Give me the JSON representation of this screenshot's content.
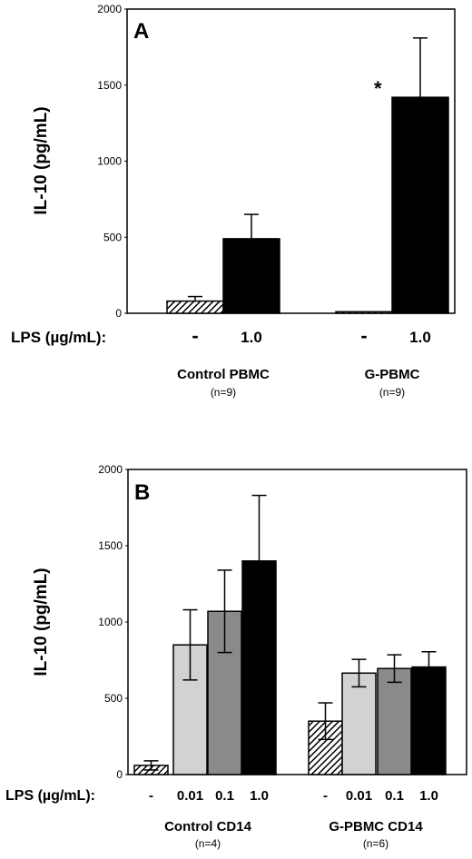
{
  "chart_data": [
    {
      "type": "bar",
      "panel": "A",
      "ylabel": "IL-10 (pg/mL)",
      "ylim": [
        0,
        2000
      ],
      "yticks": [
        "0",
        "500",
        "1000",
        "1500",
        "2000"
      ],
      "lps_label": "LPS (µg/mL):",
      "groups": [
        {
          "name": "Control PBMC",
          "n": "(n=9)",
          "bars": [
            {
              "condition": "-",
              "value": 80,
              "error": 30,
              "fill": "hatch"
            },
            {
              "condition": "1.0",
              "value": 490,
              "error": 160,
              "fill": "#000000"
            }
          ]
        },
        {
          "name": "G-PBMC",
          "n": "(n=9)",
          "bars": [
            {
              "condition": "-",
              "value": 10,
              "error": 0,
              "fill": "hatch"
            },
            {
              "condition": "1.0",
              "value": 1420,
              "error": 390,
              "fill": "#000000",
              "annotation": "*"
            }
          ]
        }
      ]
    },
    {
      "type": "bar",
      "panel": "B",
      "ylabel": "IL-10 (pg/mL)",
      "ylim": [
        0,
        2000
      ],
      "yticks": [
        "0",
        "500",
        "1000",
        "1500",
        "2000"
      ],
      "lps_label": "LPS (µg/mL):",
      "groups": [
        {
          "name": "Control CD14",
          "n": "(n=4)",
          "bars": [
            {
              "condition": "-",
              "value": 60,
              "error": 30,
              "fill": "hatch"
            },
            {
              "condition": "0.01",
              "value": 850,
              "error": 230,
              "fill": "#d2d2d2"
            },
            {
              "condition": "0.1",
              "value": 1070,
              "error": 270,
              "fill": "#8a8a8a"
            },
            {
              "condition": "1.0",
              "value": 1400,
              "error": 430,
              "fill": "#000000"
            }
          ]
        },
        {
          "name": "G-PBMC CD14",
          "n": "(n=6)",
          "bars": [
            {
              "condition": "-",
              "value": 350,
              "error": 120,
              "fill": "hatch"
            },
            {
              "condition": "0.01",
              "value": 665,
              "error": 90,
              "fill": "#d2d2d2"
            },
            {
              "condition": "0.1",
              "value": 695,
              "error": 90,
              "fill": "#8a8a8a"
            },
            {
              "condition": "1.0",
              "value": 705,
              "error": 100,
              "fill": "#000000"
            }
          ]
        }
      ]
    }
  ]
}
